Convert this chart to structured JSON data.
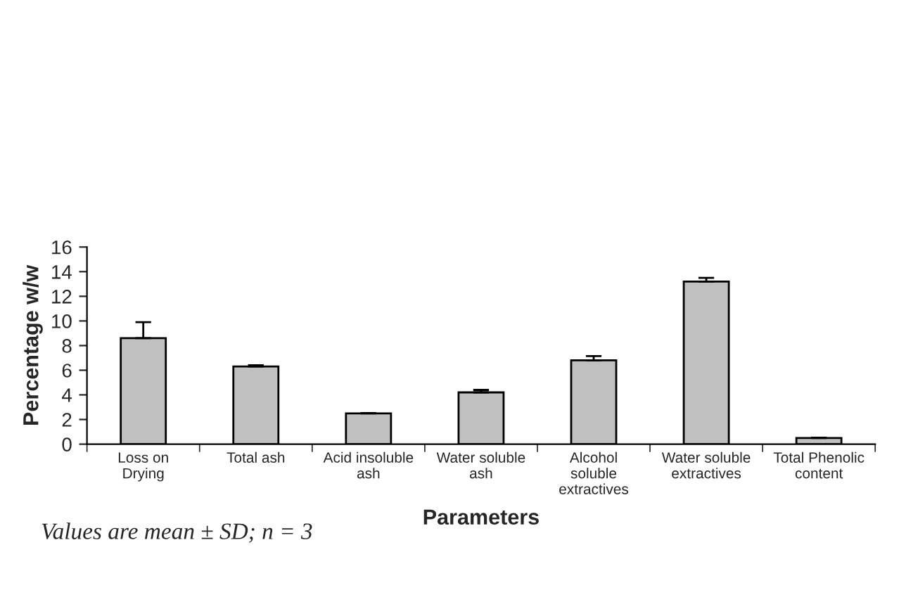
{
  "chart_data": {
    "type": "bar",
    "categories": [
      "Loss on\nDrying",
      "Total ash",
      "Acid insoluble\nash",
      "Water soluble\nash",
      "Alcohol\nsoluble\nextractives",
      "Water soluble\nextractives",
      "Total Phenolic\ncontent"
    ],
    "values": [
      8.6,
      6.3,
      2.5,
      4.2,
      6.8,
      13.2,
      0.5
    ],
    "errors": [
      1.3,
      0.1,
      0.03,
      0.2,
      0.35,
      0.3,
      0.03
    ],
    "color": "#c0c0c0",
    "xlabel": "Parameters",
    "ylabel": "Percentage w/w",
    "ylim": [
      0,
      16
    ],
    "yticks": [
      0,
      2,
      4,
      6,
      8,
      10,
      12,
      14,
      16
    ],
    "annotations": [
      "Values are mean ± SD; n = 3"
    ],
    "grid": false,
    "legend": false
  }
}
